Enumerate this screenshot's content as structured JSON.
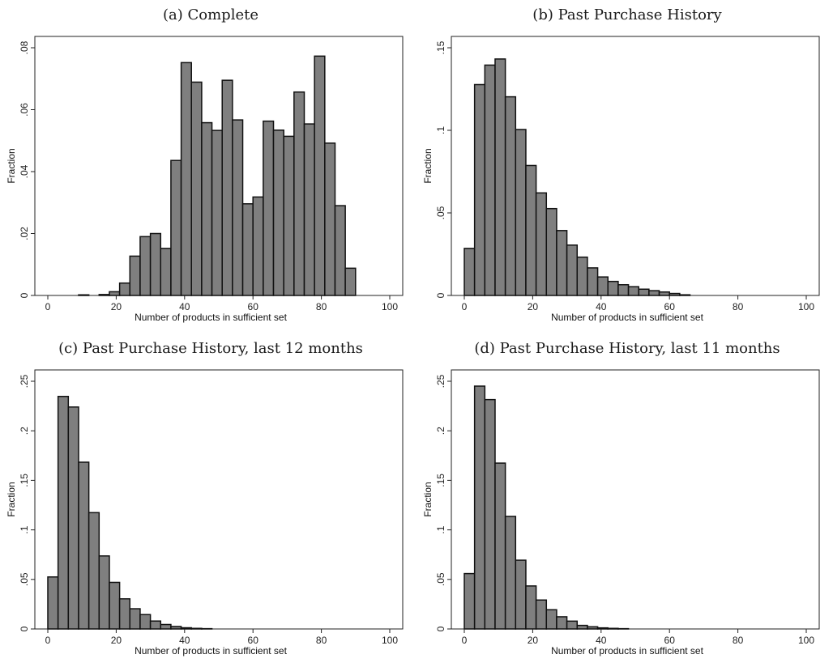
{
  "colors": {
    "bar_fill": "#7f7f7f",
    "bar_edge": "#111111",
    "frame": "#222222"
  },
  "chart_data": [
    {
      "type": "bar",
      "title": "(a) Complete",
      "xlabel": "Number of products in sufficient set",
      "ylabel": "Fraction",
      "xlim": [
        0,
        100
      ],
      "ylim": [
        0,
        0.08
      ],
      "xticks": [
        0,
        20,
        40,
        60,
        80,
        100
      ],
      "xtick_labels": [
        "0",
        "20",
        "40",
        "60",
        "80",
        "100"
      ],
      "yticks": [
        0,
        0.02,
        0.04,
        0.06,
        0.08
      ],
      "ytick_labels": [
        "0",
        ".02",
        ".04",
        ".06",
        ".08"
      ],
      "bin_width": 3,
      "bins": [
        9,
        15,
        18,
        21,
        24,
        27,
        30,
        33,
        36,
        39,
        42,
        45,
        48,
        51,
        54,
        57,
        60,
        63,
        66,
        69,
        72,
        75,
        78,
        81,
        84,
        87
      ],
      "values": [
        0.0002,
        0.0003,
        0.0012,
        0.004,
        0.0127,
        0.019,
        0.02,
        0.0152,
        0.0436,
        0.0752,
        0.0689,
        0.0558,
        0.0533,
        0.0695,
        0.0567,
        0.0296,
        0.0318,
        0.0563,
        0.0534,
        0.0514,
        0.0657,
        0.0554,
        0.0773,
        0.0492,
        0.029,
        0.0088
      ],
      "grid": false
    },
    {
      "type": "bar",
      "title": "(b) Past Purchase History",
      "xlabel": "Number of products in sufficient set",
      "ylabel": "Fraction",
      "xlim": [
        0,
        100
      ],
      "ylim": [
        0,
        0.15
      ],
      "xticks": [
        0,
        20,
        40,
        60,
        80,
        100
      ],
      "xtick_labels": [
        "0",
        "20",
        "40",
        "60",
        "80",
        "100"
      ],
      "yticks": [
        0,
        0.05,
        0.1,
        0.15
      ],
      "ytick_labels": [
        "0",
        ".05",
        ".1",
        ".15"
      ],
      "bin_width": 3,
      "bins": [
        0,
        3,
        6,
        9,
        12,
        15,
        18,
        21,
        24,
        27,
        30,
        33,
        36,
        39,
        42,
        45,
        48,
        51,
        54,
        57,
        60,
        63
      ],
      "values": [
        0.0285,
        0.1277,
        0.1395,
        0.1432,
        0.1203,
        0.1005,
        0.0787,
        0.0621,
        0.0526,
        0.0393,
        0.0305,
        0.0232,
        0.0167,
        0.0112,
        0.0085,
        0.0065,
        0.0053,
        0.0038,
        0.0029,
        0.0021,
        0.0012,
        0.0004
      ],
      "grid": false
    },
    {
      "type": "bar",
      "title": "(c) Past Purchase History, last 12 months",
      "xlabel": "Number of products in sufficient set",
      "ylabel": "Fraction",
      "xlim": [
        0,
        100
      ],
      "ylim": [
        0,
        0.25
      ],
      "xticks": [
        0,
        20,
        40,
        60,
        80,
        100
      ],
      "xtick_labels": [
        "0",
        "20",
        "40",
        "60",
        "80",
        "100"
      ],
      "yticks": [
        0,
        0.05,
        0.1,
        0.15,
        0.2,
        0.25
      ],
      "ytick_labels": [
        "0",
        ".05",
        ".1",
        ".15",
        ".2",
        ".25"
      ],
      "bin_width": 3,
      "bins": [
        0,
        3,
        6,
        9,
        12,
        15,
        18,
        21,
        24,
        27,
        30,
        33,
        36,
        39,
        42,
        45
      ],
      "values": [
        0.0525,
        0.2347,
        0.224,
        0.1683,
        0.1174,
        0.0737,
        0.047,
        0.0304,
        0.0204,
        0.0145,
        0.008,
        0.0045,
        0.0025,
        0.0012,
        0.0006,
        0.0003
      ],
      "grid": false
    },
    {
      "type": "bar",
      "title": "(d) Past Purchase History, last 11 months",
      "xlabel": "Number of products in sufficient set",
      "ylabel": "Fraction",
      "xlim": [
        0,
        100
      ],
      "ylim": [
        0,
        0.25
      ],
      "xticks": [
        0,
        20,
        40,
        60,
        80,
        100
      ],
      "xtick_labels": [
        "0",
        "20",
        "40",
        "60",
        "80",
        "100"
      ],
      "yticks": [
        0,
        0.05,
        0.1,
        0.15,
        0.2,
        0.25
      ],
      "ytick_labels": [
        "0",
        ".05",
        ".1",
        ".15",
        ".2",
        ".25"
      ],
      "bin_width": 3,
      "bins": [
        0,
        3,
        6,
        9,
        12,
        15,
        18,
        21,
        24,
        27,
        30,
        33,
        36,
        39,
        42,
        45
      ],
      "values": [
        0.0559,
        0.2451,
        0.2315,
        0.1674,
        0.1136,
        0.0694,
        0.0434,
        0.0292,
        0.0194,
        0.0123,
        0.0079,
        0.0036,
        0.0022,
        0.0011,
        0.0006,
        0.0003
      ],
      "grid": false
    }
  ]
}
